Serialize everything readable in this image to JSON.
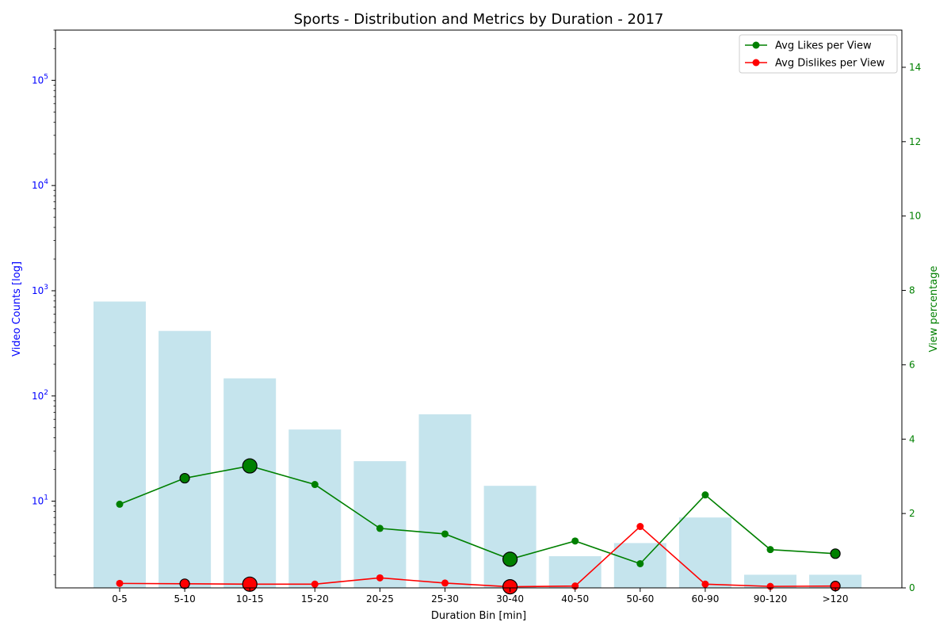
{
  "chart_data": {
    "type": "bar",
    "title": "Sports - Distribution and Metrics by Duration - 2017",
    "xlabel": "Duration Bin [min]",
    "ylabel": "Video Counts [log]",
    "y2label": "View percentage",
    "y_scale": "log",
    "ylim": [
      1.5,
      300000
    ],
    "y2lim": [
      0,
      15
    ],
    "grid": false,
    "legend_position": "top-right",
    "categories": [
      "0-5",
      "5-10",
      "10-15",
      "15-20",
      "20-25",
      "25-30",
      "30-40",
      "40-50",
      "50-60",
      "60-90",
      "90-120",
      ">120"
    ],
    "y_ticks": [
      {
        "value": 10,
        "base": "10",
        "exp": "1"
      },
      {
        "value": 100,
        "base": "10",
        "exp": "2"
      },
      {
        "value": 1000,
        "base": "10",
        "exp": "3"
      },
      {
        "value": 10000,
        "base": "10",
        "exp": "4"
      },
      {
        "value": 100000,
        "base": "10",
        "exp": "5"
      }
    ],
    "y2_ticks": [
      "0",
      "2",
      "4",
      "6",
      "8",
      "10",
      "12",
      "14"
    ],
    "bars": {
      "name": "Video Counts",
      "color": "#add8e6",
      "values": [
        790,
        415,
        147,
        48,
        24,
        67,
        14,
        3,
        4,
        7,
        2,
        2
      ]
    },
    "series": [
      {
        "name": "Avg Likes per View",
        "color": "#008000",
        "values": [
          2.25,
          2.95,
          3.28,
          2.78,
          1.6,
          1.45,
          0.77,
          1.26,
          0.65,
          2.5,
          1.03,
          0.92
        ]
      },
      {
        "name": "Avg Dislikes per View",
        "color": "#ff0000",
        "values": [
          0.12,
          0.11,
          0.1,
          0.1,
          0.27,
          0.13,
          0.03,
          0.05,
          1.65,
          0.1,
          0.04,
          0.05
        ]
      }
    ],
    "highlights": [
      {
        "index": 1,
        "size": "medium"
      },
      {
        "index": 2,
        "size": "large"
      },
      {
        "index": 6,
        "size": "large"
      },
      {
        "index": 11,
        "size": "medium"
      }
    ],
    "tick_colors": {
      "left": "#0000ff",
      "right": "#008000"
    }
  }
}
